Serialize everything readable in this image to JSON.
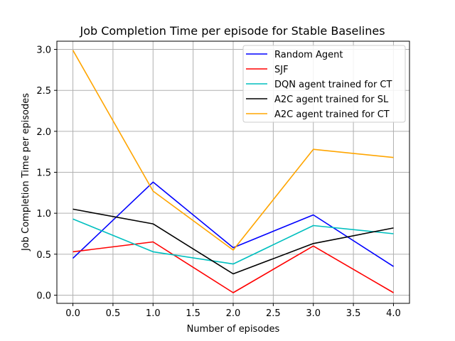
{
  "chart_data": {
    "type": "line",
    "title": "Job Completion Time per episode for Stable Baselines",
    "xlabel": "Number of episodes",
    "ylabel": "Job Completion Time per episodes",
    "x": [
      0,
      1,
      2,
      3,
      4
    ],
    "xlim": [
      -0.2,
      4.2
    ],
    "ylim": [
      -0.1,
      3.1
    ],
    "xticks": [
      0.0,
      0.5,
      1.0,
      1.5,
      2.0,
      2.5,
      3.0,
      3.5,
      4.0
    ],
    "xtick_labels": [
      "0.0",
      "0.5",
      "1.0",
      "1.5",
      "2.0",
      "2.5",
      "3.0",
      "3.5",
      "4.0"
    ],
    "yticks": [
      0.0,
      0.5,
      1.0,
      1.5,
      2.0,
      2.5,
      3.0
    ],
    "ytick_labels": [
      "0.0",
      "0.5",
      "1.0",
      "1.5",
      "2.0",
      "2.5",
      "3.0"
    ],
    "grid": true,
    "legend_position": "top-right",
    "series": [
      {
        "name": "Random Agent",
        "color": "#0000ff",
        "values": [
          0.45,
          1.38,
          0.58,
          0.98,
          0.35
        ]
      },
      {
        "name": "SJF",
        "color": "#ff0000",
        "values": [
          0.53,
          0.65,
          0.03,
          0.6,
          0.03
        ]
      },
      {
        "name": "DQN agent trained for CT",
        "color": "#00bfbf",
        "values": [
          0.93,
          0.53,
          0.38,
          0.85,
          0.75
        ]
      },
      {
        "name": "A2C agent trained for SL",
        "color": "#000000",
        "values": [
          1.05,
          0.87,
          0.26,
          0.63,
          0.82
        ]
      },
      {
        "name": "A2C agent trained for CT",
        "color": "#ffa500",
        "values": [
          2.99,
          1.27,
          0.55,
          1.78,
          1.68
        ]
      }
    ]
  }
}
